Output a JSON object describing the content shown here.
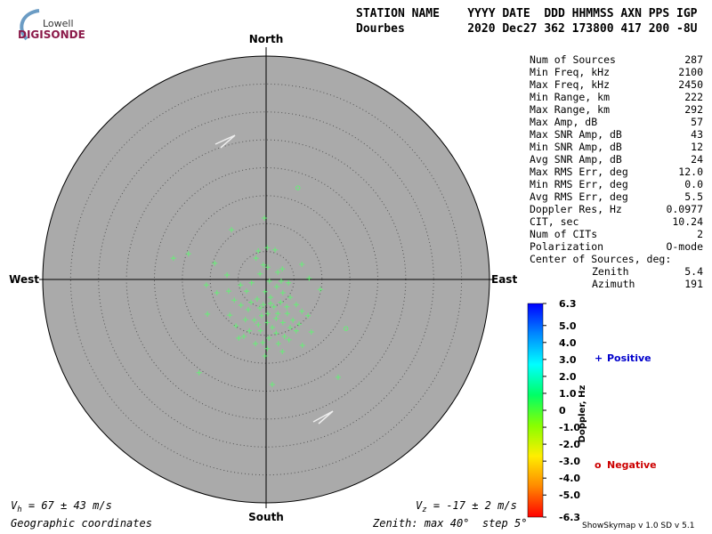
{
  "logo": {
    "line1": "Lowell",
    "line2": "DIGISONDE"
  },
  "header": {
    "labels": "STATION NAME    YYYY DATE  DDD HHMMSS AXN PPS IGP",
    "values": "Dourbes         2020 Dec27 362 173800 417 200 -8U"
  },
  "parameters": [
    [
      "Num of Sources",
      "287"
    ],
    [
      "Min Freq, kHz",
      "2100"
    ],
    [
      "Max Freq, kHz",
      "2450"
    ],
    [
      "Min Range, km",
      "222"
    ],
    [
      "Max Range, km",
      "292"
    ],
    [
      "Max Amp, dB",
      "57"
    ],
    [
      "Max SNR Amp, dB",
      "43"
    ],
    [
      "Min SNR Amp, dB",
      "12"
    ],
    [
      "Avg SNR Amp, dB",
      "24"
    ],
    [
      "Max RMS Err, deg",
      "12.0"
    ],
    [
      "Min RMS Err, deg",
      "0.0"
    ],
    [
      "Avg RMS Err, deg",
      "5.5"
    ],
    [
      "Doppler Res, Hz",
      "0.0977"
    ],
    [
      "CIT, sec",
      "10.24"
    ],
    [
      "Num of CITs",
      "2"
    ],
    [
      "Polarization",
      "O-mode"
    ]
  ],
  "center": {
    "title": "Center of Sources, deg:",
    "rows": [
      [
        "Zenith",
        "5.4"
      ],
      [
        "Azimuth",
        "191"
      ]
    ]
  },
  "footer": {
    "vh": {
      "symbol": "V",
      "sub": "h",
      "text": " = 67 ± 43 m/s"
    },
    "vz": {
      "symbol": "V",
      "sub": "z",
      "text": " = -17 ± 2 m/s"
    },
    "coords": "Geographic coordinates",
    "version": "ShowSkymap v 1.0  SD v 5.1"
  },
  "chart_data": {
    "type": "skymap",
    "directions": {
      "north": "North",
      "south": "South",
      "east": "East",
      "west": "West"
    },
    "zenith": {
      "prefix": "Zenith: max",
      "max": {
        "value": 40,
        "label": "40°"
      },
      "step_prefix": "step",
      "step": {
        "value": 5,
        "label": "5°"
      }
    },
    "series": [
      {
        "name": "Positive",
        "marker": "+",
        "color": "#66ee77",
        "legend_color": "#0000cc",
        "x": [
          -0.3,
          -6.2,
          -16.6,
          -13.9,
          -12.0,
          12.9,
          1.1,
          -0.2,
          -10.5,
          -9.2,
          -1.4,
          0.2,
          1.6,
          -0.5,
          -1.8,
          2.9,
          6.4,
          7.7,
          9.7,
          -7.0,
          -10.7,
          7.5,
          8.1,
          6.5,
          2.9,
          4.1,
          -6.5,
          -4.9,
          -4.0,
          -1.9,
          -1.0,
          -8.8,
          -5.7,
          -4.6,
          -3.5,
          -2.6,
          -1.1,
          0.6,
          1.9,
          3.0,
          4.3,
          5.4,
          6.4,
          3.7,
          2.6,
          1.4,
          0.3,
          -0.8,
          -2.1,
          -3.2,
          -4.5,
          -5.4,
          -3.0,
          -1.4,
          0.2,
          1.8,
          3.0,
          4.3,
          5.4,
          3.3,
          1.8,
          0.5,
          -0.6,
          1.1,
          2.1,
          0.8,
          -0.2,
          -1.6,
          -2.7,
          -3.7,
          2.7,
          4.0,
          2.1,
          0.3,
          -6.7,
          4.8,
          5.9,
          2.2,
          0.2,
          3.8,
          -1.1,
          0.8,
          -0.5
        ],
        "y": [
          11.0,
          8.9,
          3.8,
          4.6,
          -16.7,
          -17.5,
          -18.8,
          -13.7,
          -6.2,
          2.9,
          5.1,
          5.7,
          5.3,
          2.6,
          3.8,
          1.9,
          2.7,
          0.2,
          -1.8,
          0.8,
          -1.0,
          -6.5,
          -9.4,
          -11.8,
          -12.9,
          -10.8,
          -6.4,
          -10.5,
          -10.2,
          -11.5,
          -9.2,
          -2.4,
          -3.7,
          -1.0,
          -2.1,
          -0.6,
          1.0,
          -0.3,
          -1.3,
          -2.4,
          -3.2,
          -4.5,
          -5.7,
          -4.9,
          -4.1,
          -4.9,
          -6.1,
          -6.5,
          -7.3,
          -5.4,
          -4.6,
          -8.3,
          -9.2,
          -8.1,
          -7.7,
          -7.0,
          -7.7,
          -8.6,
          -9.2,
          -10.2,
          -9.6,
          -10.5,
          -11.3,
          -8.6,
          -6.1,
          -3.2,
          -2.2,
          -3.5,
          -4.1,
          -7.2,
          -0.3,
          -0.6,
          1.3,
          2.2,
          -2.1,
          -7.3,
          -8.0,
          -11.5,
          -12.4,
          -6.1,
          -5.1,
          -4.3,
          -4.5
        ]
      },
      {
        "name": "Negative",
        "marker": "o",
        "color": "#66ee77",
        "legend_color": "#cc0000",
        "x": [
          14.3,
          5.7
        ],
        "y": [
          -8.8,
          16.4
        ]
      }
    ],
    "colorbar": {
      "label": "Doppler, Hz",
      "ylim": [
        -6.3,
        6.3
      ],
      "colors": [
        "#ff0000",
        "#ff8800",
        "#ffee00",
        "#88ff00",
        "#00ff66",
        "#00ffff",
        "#0088ff",
        "#0000ff"
      ],
      "yticks": [
        6.3,
        {
          "value": 5,
          "label": "5.0"
        },
        {
          "value": 4,
          "label": "4.0"
        },
        {
          "value": 3,
          "label": "3.0"
        },
        {
          "value": 2,
          "label": "2.0"
        },
        {
          "value": 1,
          "label": "1.0"
        },
        0,
        {
          "value": -1,
          "label": "-1.0"
        },
        {
          "value": -2,
          "label": "-2.0"
        },
        {
          "value": -3,
          "label": "-3.0"
        },
        {
          "value": -4,
          "label": "-4.0"
        },
        {
          "value": -5,
          "label": "-5.0"
        },
        -6.3
      ]
    }
  }
}
